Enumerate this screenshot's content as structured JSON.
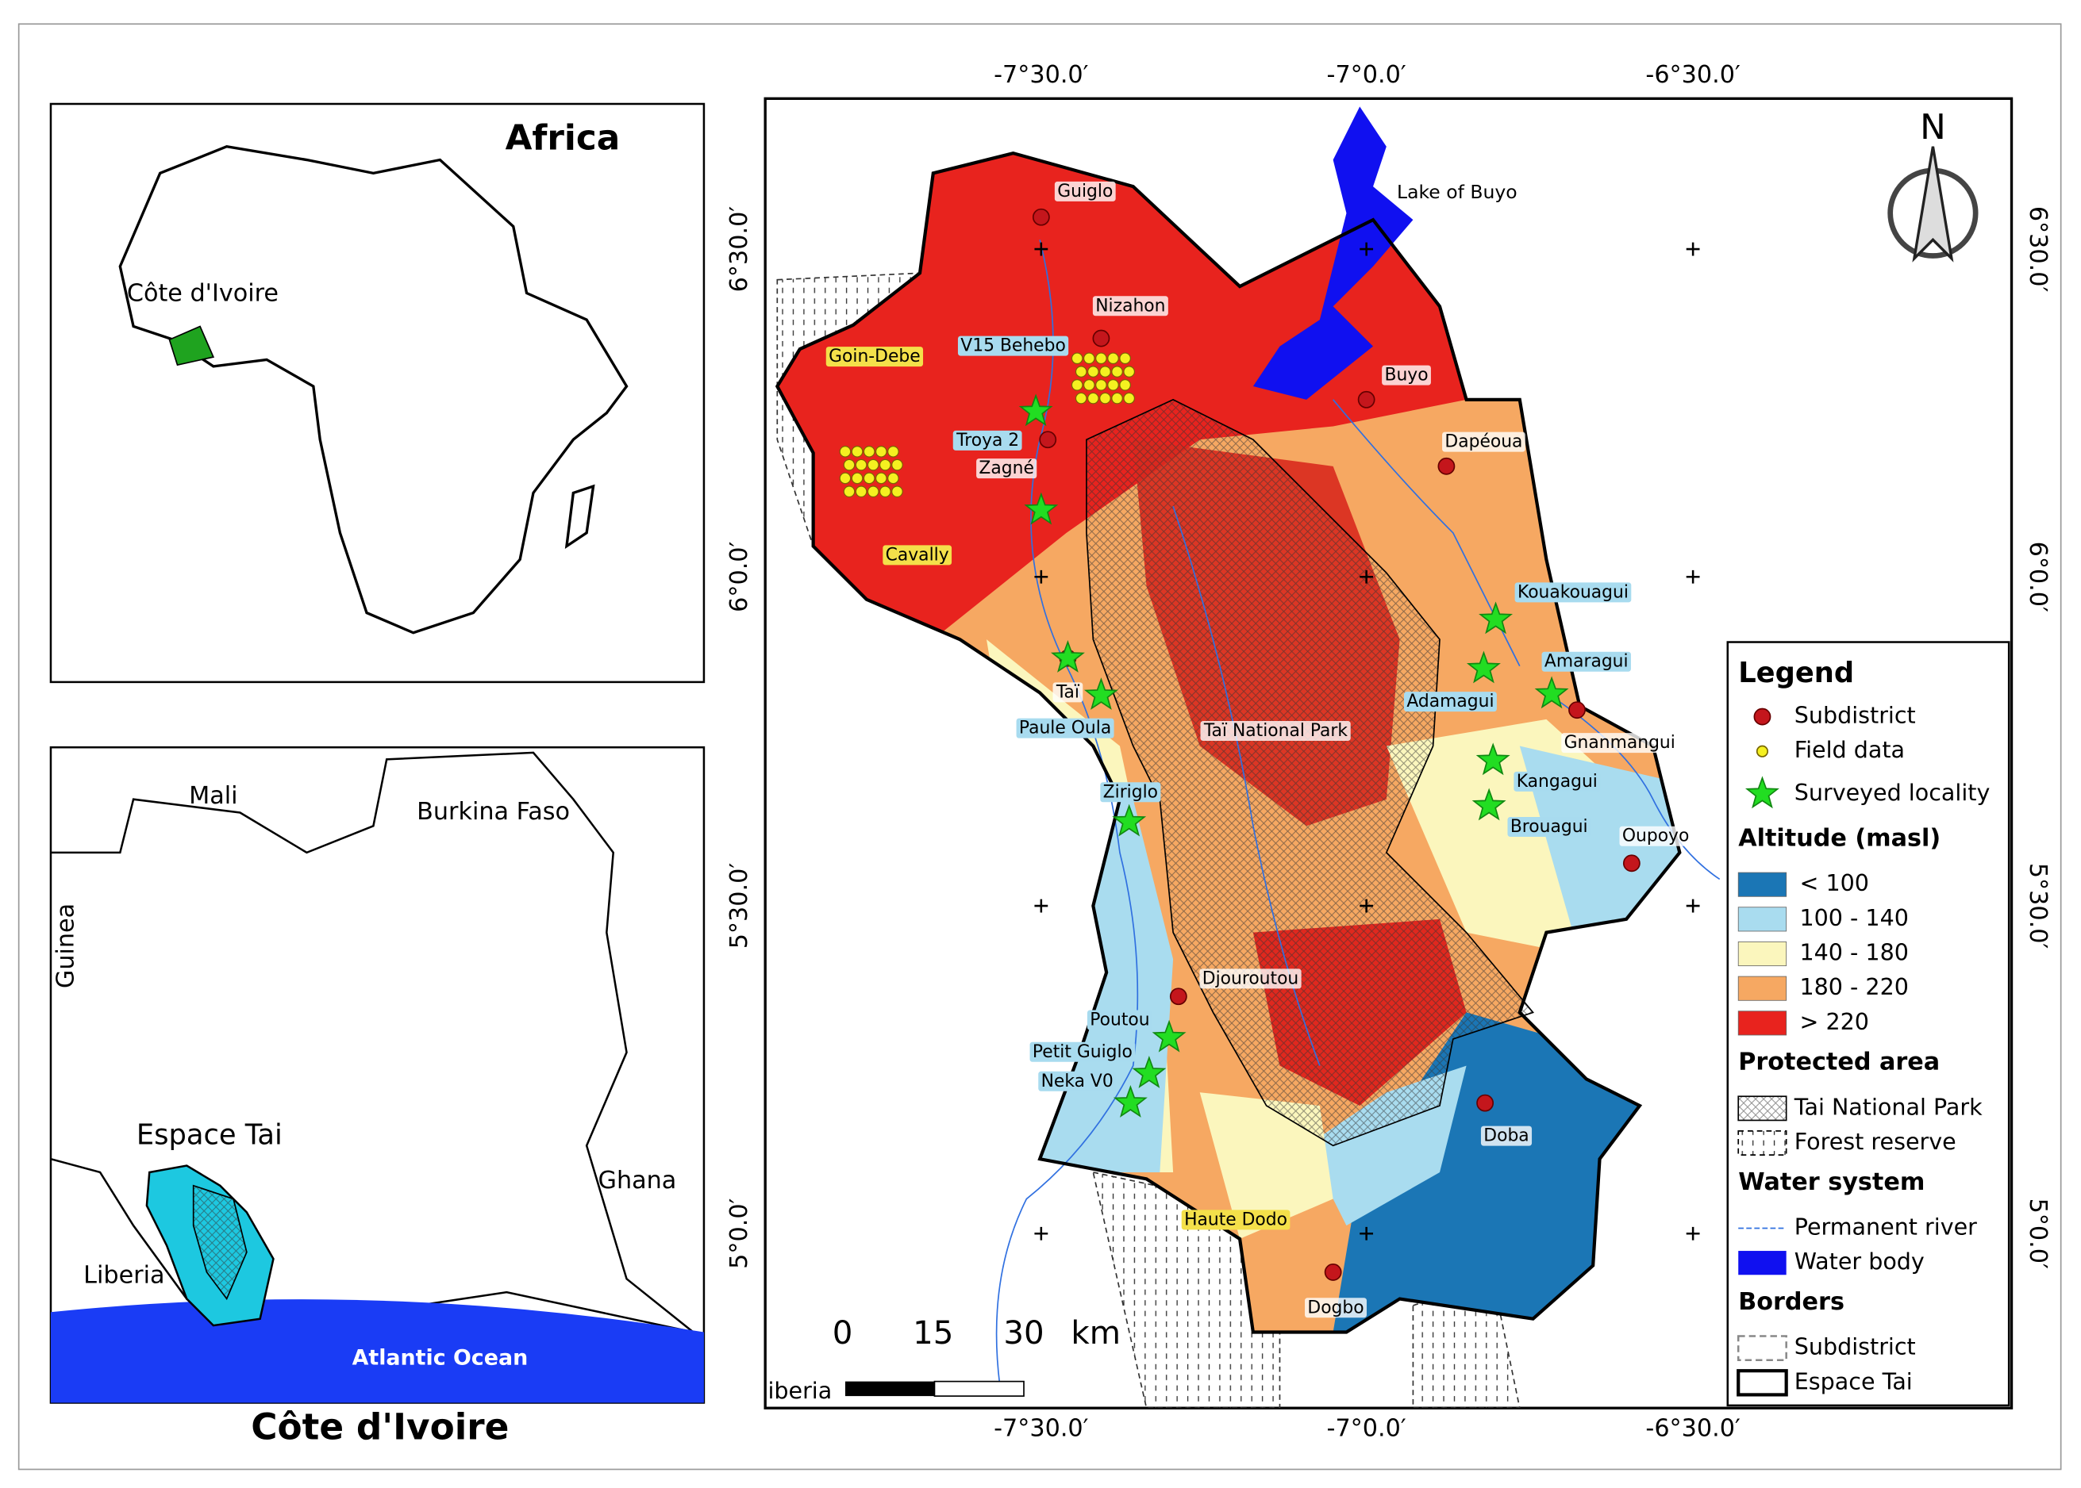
{
  "africa_inset": {
    "title": "Africa",
    "country_label": "Côte d'Ivoire"
  },
  "country_inset": {
    "title": "Côte d'Ivoire",
    "labels": [
      "Mali",
      "Burkina Faso",
      "Guinea",
      "Ghana",
      "Liberia",
      "Espace Tai",
      "Atlantic Ocean"
    ]
  },
  "main_map": {
    "coordinates": {
      "top": [
        "-7°30.0′",
        "-7°0.0′",
        "-6°30.0′"
      ],
      "bottom": [
        "-7°30.0′",
        "-7°0.0′",
        "-6°30.0′"
      ],
      "left": [
        "6°30.0′",
        "6°0.0′",
        "5°30.0′",
        "5°0.0′"
      ],
      "right": [
        "6°30.0′",
        "6°0.0′",
        "5°30.0′",
        "5°0.0′"
      ]
    },
    "north": "N",
    "scale_bar": {
      "ticks": [
        "0",
        "15",
        "30"
      ],
      "unit": "km"
    },
    "neighbor_label": "iberia",
    "subdistricts": [
      "Guiglo",
      "Nizahon",
      "Buyo",
      "Dapéoua",
      "Zagné",
      "Taï",
      "Djouroutou",
      "Gnanmangui",
      "Oupoyo",
      "Doba",
      "Dogbo"
    ],
    "surveyed_localities": [
      "V15 Behebo",
      "Troya 2",
      "Kouakouagui",
      "Amaragui",
      "Adamagui",
      "Kangagui",
      "Brouagui",
      "Paule Oula",
      "Ziriglo",
      "Poutou",
      "Petit Guiglo",
      "Neka V0"
    ],
    "forest_reserves": [
      "Goin-Debe",
      "Cavally",
      "Haute Dodo"
    ],
    "features": [
      "Lake of Buyo",
      "Taï National Park"
    ]
  },
  "legend": {
    "title": "Legend",
    "symbols": [
      "Subdistrict",
      "Field data",
      "Surveyed locality"
    ],
    "altitude": {
      "heading": "Altitude (masl)",
      "classes": [
        "< 100",
        "100 - 140",
        "140 - 180",
        "180 - 220",
        "> 220"
      ]
    },
    "protected_area": {
      "heading": "Protected area",
      "items": [
        "Tai National Park",
        "Forest reserve"
      ]
    },
    "water_system": {
      "heading": "Water system",
      "items": [
        "Permanent river",
        "Water body"
      ]
    },
    "borders": {
      "heading": "Borders",
      "items": [
        "Subdistrict",
        "Espace Tai"
      ]
    }
  }
}
